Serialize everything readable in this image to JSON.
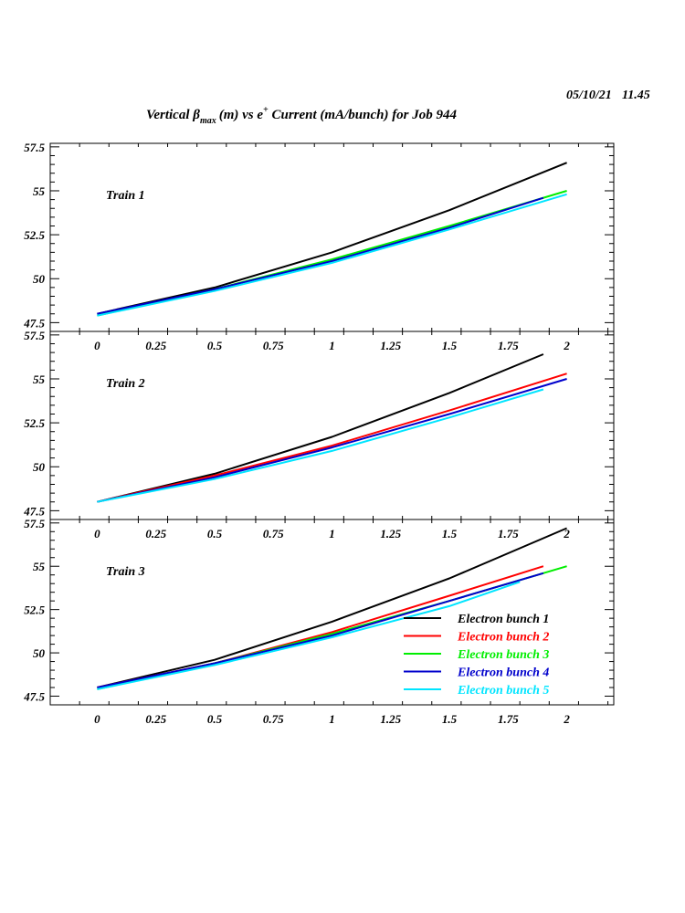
{
  "header": {
    "date": "05/10/21",
    "time": "11.45",
    "title_prefix": "Vertical β",
    "title_sub": "max",
    "title_mid": "(m) vs e",
    "title_sup": "+",
    "title_suffix": " Current (mA/bunch) for Job 944"
  },
  "colors": {
    "Electron bunch 1": "#000000",
    "Electron bunch 2": "#ff0000",
    "Electron bunch 3": "#00ee00",
    "Electron bunch 4": "#0000cc",
    "Electron bunch 5": "#00e5ff"
  },
  "chart_data": {
    "type": "line",
    "xlim": [
      -0.2,
      2.2
    ],
    "x_ticks": [
      "0",
      "0.25",
      "0.5",
      "0.75",
      "1",
      "1.25",
      "1.5",
      "1.75",
      "2"
    ],
    "y_ticks": [
      "47.5",
      "50",
      "52.5",
      "55",
      "57.5"
    ],
    "legend": {
      "placement": "bottom-right of Train 3 panel",
      "entries": [
        "Electron bunch 1",
        "Electron bunch 2",
        "Electron bunch 3",
        "Electron bunch 4",
        "Electron bunch 5"
      ]
    },
    "panels": [
      {
        "label": "Train 1",
        "ylim": [
          47,
          57.7
        ],
        "series": [
          {
            "name": "Electron bunch 1",
            "x": [
              0,
              0.5,
              1,
              1.5,
              2
            ],
            "y": [
              48.0,
              49.5,
              51.5,
              53.9,
              56.6
            ]
          },
          {
            "name": "Electron bunch 3",
            "x": [
              0,
              0.5,
              1,
              1.5,
              2
            ],
            "y": [
              47.9,
              49.4,
              51.1,
              53.0,
              55.0
            ]
          },
          {
            "name": "Electron bunch 4",
            "x": [
              0,
              0.5,
              1,
              1.5,
              1.9
            ],
            "y": [
              48.0,
              49.4,
              51.0,
              52.9,
              54.6
            ]
          },
          {
            "name": "Electron bunch 5",
            "x": [
              0,
              0.5,
              1,
              1.5,
              2
            ],
            "y": [
              47.9,
              49.3,
              50.9,
              52.8,
              54.8
            ]
          }
        ]
      },
      {
        "label": "Train 2",
        "ylim": [
          47,
          57.7
        ],
        "series": [
          {
            "name": "Electron bunch 1",
            "x": [
              0,
              0.5,
              1,
              1.5,
              1.9
            ],
            "y": [
              48.0,
              49.6,
              51.7,
              54.2,
              56.4
            ]
          },
          {
            "name": "Electron bunch 2",
            "x": [
              0,
              0.5,
              1,
              1.5,
              2
            ],
            "y": [
              48.0,
              49.5,
              51.2,
              53.2,
              55.3
            ]
          },
          {
            "name": "Electron bunch 4",
            "x": [
              0,
              0.5,
              1,
              1.5,
              2
            ],
            "y": [
              48.0,
              49.4,
              51.1,
              53.0,
              55.0
            ]
          },
          {
            "name": "Electron bunch 5",
            "x": [
              0,
              0.5,
              1,
              1.5,
              1.9
            ],
            "y": [
              48.0,
              49.3,
              50.9,
              52.8,
              54.4
            ]
          }
        ]
      },
      {
        "label": "Train 3",
        "ylim": [
          47,
          57.7
        ],
        "series": [
          {
            "name": "Electron bunch 1",
            "x": [
              0,
              0.5,
              1,
              1.5,
              2
            ],
            "y": [
              48.0,
              49.6,
              51.8,
              54.3,
              57.2
            ]
          },
          {
            "name": "Electron bunch 2",
            "x": [
              0,
              0.5,
              1,
              1.5,
              1.9
            ],
            "y": [
              48.0,
              49.4,
              51.2,
              53.3,
              55.0
            ]
          },
          {
            "name": "Electron bunch 3",
            "x": [
              0,
              0.5,
              1,
              1.5,
              2
            ],
            "y": [
              47.9,
              49.4,
              51.1,
              53.0,
              55.0
            ]
          },
          {
            "name": "Electron bunch 4",
            "x": [
              0,
              0.5,
              1,
              1.5,
              1.9
            ],
            "y": [
              48.0,
              49.4,
              51.0,
              53.0,
              54.6
            ]
          },
          {
            "name": "Electron bunch 5",
            "x": [
              0,
              0.5,
              1,
              1.5,
              1.8
            ],
            "y": [
              47.9,
              49.3,
              50.9,
              52.7,
              54.1
            ]
          }
        ]
      }
    ]
  }
}
